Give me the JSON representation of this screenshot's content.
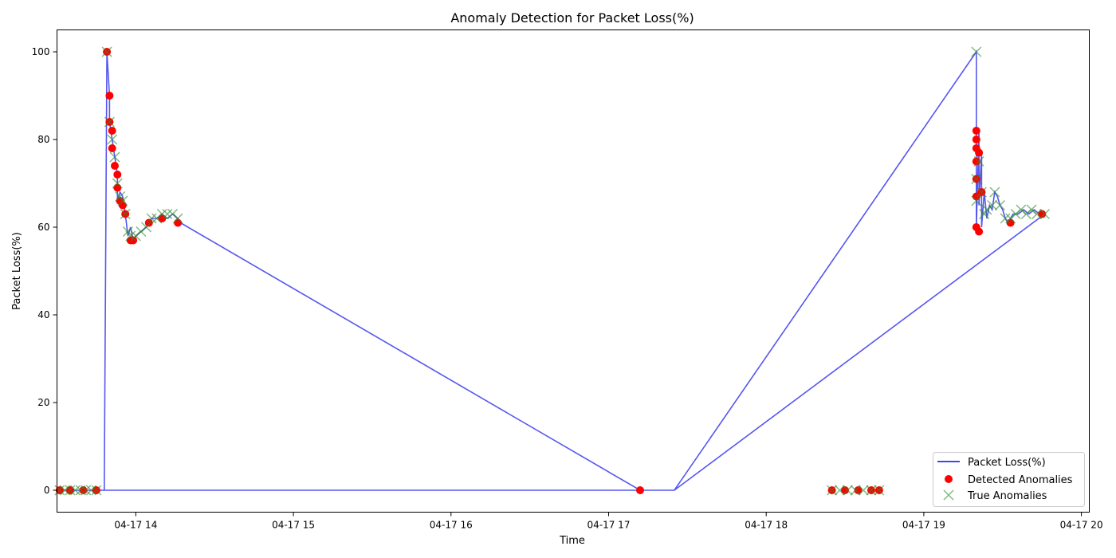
{
  "chart_data": {
    "type": "line",
    "title": "Anomaly Detection for Packet Loss(%)",
    "xlabel": "Time",
    "ylabel": "Packet Loss(%)",
    "x_axis": {
      "type": "time",
      "start": "04-17 13:30",
      "end": "04-17 20:03",
      "ticks": [
        "04-17 14",
        "04-17 15",
        "04-17 16",
        "04-17 17",
        "04-17 18",
        "04-17 19",
        "04-17 20"
      ]
    },
    "ylim": [
      -5,
      105
    ],
    "yticks": [
      0,
      20,
      40,
      60,
      80,
      100
    ],
    "grid": false,
    "legend": {
      "position": "bottom-right",
      "entries": [
        "Packet Loss(%)",
        "Detected Anomalies",
        "True Anomalies"
      ]
    },
    "colors": {
      "line": "#4444ee",
      "detected": "#ff0000",
      "true": "#2e8b2e"
    },
    "series": [
      {
        "name": "Packet Loss(%)",
        "style": "line",
        "points": [
          [
            "04-17 13:31",
            0
          ],
          [
            "04-17 13:46",
            0
          ],
          [
            "04-17 13:48",
            0
          ],
          [
            "04-17 13:49",
            100
          ],
          [
            "04-17 13:50",
            90
          ],
          [
            "04-17 13:50",
            84
          ],
          [
            "04-17 13:51",
            80
          ],
          [
            "04-17 13:52",
            76
          ],
          [
            "04-17 13:53",
            72
          ],
          [
            "04-17 13:53",
            66
          ],
          [
            "04-17 13:54",
            68
          ],
          [
            "04-17 13:55",
            67
          ],
          [
            "04-17 13:56",
            63
          ],
          [
            "04-17 13:57",
            58
          ],
          [
            "04-17 13:58",
            60
          ],
          [
            "04-17 13:59",
            57
          ],
          [
            "04-17 14:00",
            58
          ],
          [
            "04-17 14:02",
            59
          ],
          [
            "04-17 14:04",
            60
          ],
          [
            "04-17 14:06",
            62
          ],
          [
            "04-17 14:08",
            62
          ],
          [
            "04-17 14:10",
            63
          ],
          [
            "04-17 14:12",
            62
          ],
          [
            "04-17 14:14",
            63
          ],
          [
            "04-17 14:16",
            62
          ],
          [
            "04-17 14:17",
            61
          ],
          [
            "04-17 17:12",
            0
          ],
          [
            "04-17 17:25",
            0
          ],
          [
            "04-17 19:20",
            100
          ],
          [
            "04-17 19:20",
            60
          ],
          [
            "04-17 19:21",
            82
          ],
          [
            "04-17 19:21",
            65
          ],
          [
            "04-17 19:22",
            77
          ],
          [
            "04-17 19:22",
            60
          ],
          [
            "04-17 19:23",
            68
          ],
          [
            "04-17 19:24",
            62
          ],
          [
            "04-17 19:25",
            65
          ],
          [
            "04-17 19:26",
            64
          ],
          [
            "04-17 19:27",
            68
          ],
          [
            "04-17 19:28",
            67
          ],
          [
            "04-17 19:29",
            65
          ],
          [
            "04-17 19:30",
            64
          ],
          [
            "04-17 19:31",
            62
          ],
          [
            "04-17 19:32",
            61
          ],
          [
            "04-17 19:34",
            63
          ],
          [
            "04-17 19:36",
            63
          ],
          [
            "04-17 19:38",
            64
          ],
          [
            "04-17 19:40",
            63
          ],
          [
            "04-17 19:42",
            64
          ],
          [
            "04-17 19:44",
            63
          ],
          [
            "04-17 19:46",
            63
          ],
          [
            "04-17 17:25",
            0
          ],
          [
            "04-17 13:46",
            0
          ]
        ]
      },
      {
        "name": "Detected Anomalies",
        "style": "scatter",
        "marker": "circle",
        "points": [
          [
            "04-17 13:31",
            0
          ],
          [
            "04-17 13:35",
            0
          ],
          [
            "04-17 13:40",
            0
          ],
          [
            "04-17 13:45",
            0
          ],
          [
            "04-17 13:49",
            100
          ],
          [
            "04-17 13:50",
            90
          ],
          [
            "04-17 13:50",
            84
          ],
          [
            "04-17 13:51",
            82
          ],
          [
            "04-17 13:51",
            78
          ],
          [
            "04-17 13:52",
            74
          ],
          [
            "04-17 13:53",
            72
          ],
          [
            "04-17 13:53",
            69
          ],
          [
            "04-17 13:54",
            66
          ],
          [
            "04-17 13:55",
            65
          ],
          [
            "04-17 13:56",
            63
          ],
          [
            "04-17 13:58",
            57
          ],
          [
            "04-17 13:59",
            57
          ],
          [
            "04-17 14:05",
            61
          ],
          [
            "04-17 14:10",
            62
          ],
          [
            "04-17 14:16",
            61
          ],
          [
            "04-17 17:12",
            0
          ],
          [
            "04-17 18:25",
            0
          ],
          [
            "04-17 18:30",
            0
          ],
          [
            "04-17 18:35",
            0
          ],
          [
            "04-17 18:40",
            0
          ],
          [
            "04-17 18:43",
            0
          ],
          [
            "04-17 19:20",
            82
          ],
          [
            "04-17 19:20",
            80
          ],
          [
            "04-17 19:20",
            78
          ],
          [
            "04-17 19:20",
            75
          ],
          [
            "04-17 19:20",
            71
          ],
          [
            "04-17 19:20",
            67
          ],
          [
            "04-17 19:20",
            60
          ],
          [
            "04-17 19:21",
            59
          ],
          [
            "04-17 19:21",
            77
          ],
          [
            "04-17 19:22",
            68
          ],
          [
            "04-17 19:33",
            61
          ],
          [
            "04-17 19:45",
            63
          ]
        ]
      },
      {
        "name": "True Anomalies",
        "style": "scatter",
        "marker": "x",
        "points": [
          [
            "04-17 13:31",
            0
          ],
          [
            "04-17 13:33",
            0
          ],
          [
            "04-17 13:35",
            0
          ],
          [
            "04-17 13:37",
            0
          ],
          [
            "04-17 13:39",
            0
          ],
          [
            "04-17 13:41",
            0
          ],
          [
            "04-17 13:43",
            0
          ],
          [
            "04-17 13:45",
            0
          ],
          [
            "04-17 13:49",
            100
          ],
          [
            "04-17 13:50",
            84
          ],
          [
            "04-17 13:51",
            80
          ],
          [
            "04-17 13:52",
            76
          ],
          [
            "04-17 13:53",
            70
          ],
          [
            "04-17 13:54",
            67
          ],
          [
            "04-17 13:55",
            66
          ],
          [
            "04-17 13:56",
            63
          ],
          [
            "04-17 13:57",
            59
          ],
          [
            "04-17 13:58",
            58
          ],
          [
            "04-17 14:00",
            58
          ],
          [
            "04-17 14:02",
            59
          ],
          [
            "04-17 14:04",
            60
          ],
          [
            "04-17 14:06",
            62
          ],
          [
            "04-17 14:08",
            62
          ],
          [
            "04-17 14:10",
            63
          ],
          [
            "04-17 14:12",
            63
          ],
          [
            "04-17 14:14",
            63
          ],
          [
            "04-17 14:16",
            62
          ],
          [
            "04-17 18:25",
            0
          ],
          [
            "04-17 18:28",
            0
          ],
          [
            "04-17 18:31",
            0
          ],
          [
            "04-17 18:34",
            0
          ],
          [
            "04-17 18:37",
            0
          ],
          [
            "04-17 18:40",
            0
          ],
          [
            "04-17 18:43",
            0
          ],
          [
            "04-17 19:20",
            100
          ],
          [
            "04-17 19:20",
            71
          ],
          [
            "04-17 19:20",
            66
          ],
          [
            "04-17 19:21",
            75
          ],
          [
            "04-17 19:22",
            68
          ],
          [
            "04-17 19:23",
            63
          ],
          [
            "04-17 19:24",
            64
          ],
          [
            "04-17 19:26",
            65
          ],
          [
            "04-17 19:27",
            68
          ],
          [
            "04-17 19:29",
            65
          ],
          [
            "04-17 19:31",
            62
          ],
          [
            "04-17 19:33",
            62
          ],
          [
            "04-17 19:35",
            63
          ],
          [
            "04-17 19:37",
            64
          ],
          [
            "04-17 19:39",
            63
          ],
          [
            "04-17 19:41",
            64
          ],
          [
            "04-17 19:43",
            63
          ],
          [
            "04-17 19:46",
            63
          ]
        ]
      }
    ]
  }
}
